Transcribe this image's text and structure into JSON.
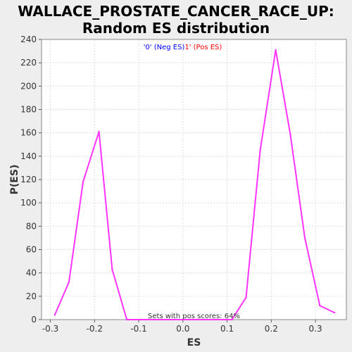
{
  "chart_data": {
    "type": "line",
    "title": "WALLACE_PROSTATE_CANCER_RACE_UP:",
    "subtitle": "Random ES distribution",
    "xlabel": "ES",
    "ylabel": "P(ES)",
    "xlim": [
      -0.32,
      0.37
    ],
    "ylim": [
      0,
      240
    ],
    "x_ticks": [
      -0.3,
      -0.2,
      -0.1,
      0.0,
      0.1,
      0.2,
      0.3
    ],
    "x_tick_labels": [
      "-0.3",
      "-0.2",
      "-0.1",
      "0.0",
      "0.1",
      "0.2",
      "0.3"
    ],
    "y_ticks": [
      0,
      20,
      40,
      60,
      80,
      100,
      120,
      140,
      160,
      180,
      200,
      220,
      240
    ],
    "y_tick_labels": [
      "0",
      "20",
      "40",
      "60",
      "80",
      "100",
      "120",
      "140",
      "160",
      "180",
      "200",
      "220",
      "240"
    ],
    "grid": true,
    "legend": {
      "neg_label": "'0' (Neg ES)",
      "pos_label": "1' (Pos ES)",
      "neg_color": "#0000ff",
      "pos_color": "#ff0000",
      "placement": "top-center"
    },
    "annotation": "Sets with pos scores: 64%",
    "series": [
      {
        "color": "#ff33ff",
        "x": [
          -0.29,
          -0.258,
          -0.226,
          -0.19,
          -0.16,
          -0.127,
          -0.095,
          -0.064,
          -0.032,
          0.0,
          0.032,
          0.063,
          0.095,
          0.111,
          0.143,
          0.175,
          0.21,
          0.243,
          0.276,
          0.31,
          0.343
        ],
        "y": [
          4,
          32,
          118,
          161,
          43,
          0,
          0,
          0,
          0,
          0,
          0,
          0,
          0,
          0,
          19,
          145,
          231,
          159,
          70,
          12,
          6
        ]
      }
    ]
  }
}
